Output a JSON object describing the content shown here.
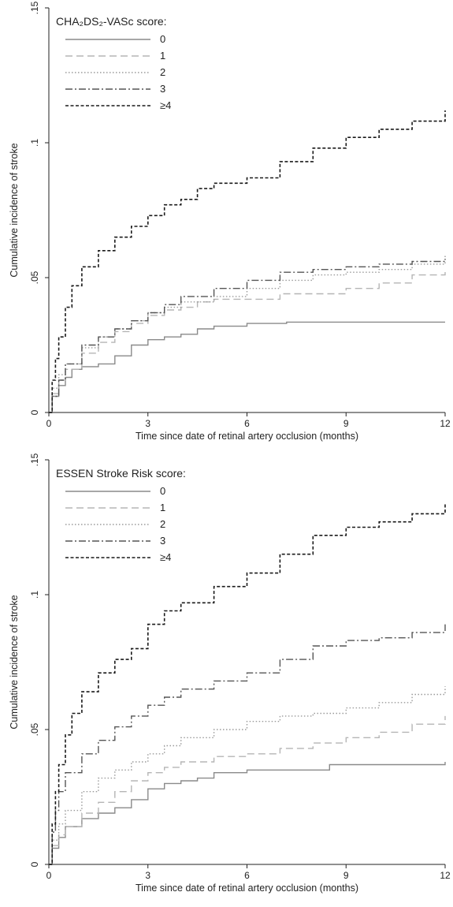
{
  "chart_data": [
    {
      "type": "line",
      "step": true,
      "legend_title": "CHA₂DS₂-VASc score:",
      "legend_position": "top-left",
      "xlabel": "Time since date of retinal artery occlusion (months)",
      "ylabel": "Cumulative incidence of stroke",
      "xlim": [
        0,
        12
      ],
      "ylim": [
        0,
        0.15
      ],
      "xticks": [
        0,
        3,
        6,
        9,
        12
      ],
      "xtick_labels": [
        "0",
        "3",
        "6",
        "9",
        "12"
      ],
      "yticks": [
        0,
        0.05,
        0.1,
        0.15
      ],
      "ytick_labels": [
        "0",
        ".05",
        ".1",
        ".15"
      ],
      "grid": false,
      "series": [
        {
          "name": "0",
          "color": "#8a8a8a",
          "dash": "solid",
          "x": [
            0,
            0.1,
            0.3,
            0.5,
            0.7,
            1,
            1.5,
            2,
            2.5,
            3,
            3.5,
            4,
            4.5,
            5,
            6,
            7,
            7.2,
            9,
            12
          ],
          "y": [
            0,
            0.006,
            0.01,
            0.013,
            0.016,
            0.017,
            0.018,
            0.021,
            0.025,
            0.027,
            0.028,
            0.029,
            0.031,
            0.032,
            0.033,
            0.033,
            0.0335,
            0.0335,
            0.0335
          ]
        },
        {
          "name": "1",
          "color": "#b5b5b5",
          "dash": "longdash",
          "x": [
            0,
            0.1,
            0.3,
            0.5,
            1,
            1.5,
            2,
            2.5,
            3,
            3.5,
            4,
            4.5,
            5,
            6,
            7,
            8,
            9,
            10,
            11,
            12
          ],
          "y": [
            0,
            0.007,
            0.012,
            0.016,
            0.022,
            0.026,
            0.03,
            0.033,
            0.036,
            0.038,
            0.039,
            0.041,
            0.042,
            0.042,
            0.044,
            0.044,
            0.046,
            0.048,
            0.051,
            0.0535
          ]
        },
        {
          "name": "2",
          "color": "#9a9a9a",
          "dash": "dot",
          "x": [
            0,
            0.1,
            0.3,
            0.5,
            1,
            1.5,
            2,
            2.5,
            3,
            3.5,
            4,
            5,
            6,
            7,
            8,
            9,
            10,
            11,
            12
          ],
          "y": [
            0,
            0.009,
            0.014,
            0.018,
            0.024,
            0.028,
            0.031,
            0.034,
            0.037,
            0.039,
            0.041,
            0.043,
            0.046,
            0.049,
            0.051,
            0.052,
            0.053,
            0.055,
            0.0585
          ]
        },
        {
          "name": "3",
          "color": "#555555",
          "dash": "dashdot",
          "x": [
            0,
            0.1,
            0.3,
            0.5,
            1,
            1.5,
            2,
            2.5,
            3,
            3.5,
            4,
            5,
            6,
            7,
            8,
            9,
            10,
            11,
            12
          ],
          "y": [
            0,
            0.006,
            0.012,
            0.018,
            0.025,
            0.028,
            0.031,
            0.034,
            0.037,
            0.04,
            0.043,
            0.046,
            0.049,
            0.052,
            0.053,
            0.054,
            0.055,
            0.056,
            0.057
          ]
        },
        {
          "name": "≥4",
          "color": "#1a1a1a",
          "dash": "dash",
          "x": [
            0,
            0.1,
            0.2,
            0.3,
            0.5,
            0.7,
            1,
            1.5,
            2,
            2.5,
            3,
            3.5,
            4,
            4.5,
            5,
            6,
            7,
            8,
            9,
            10,
            11,
            12
          ],
          "y": [
            0,
            0.012,
            0.02,
            0.028,
            0.039,
            0.047,
            0.054,
            0.06,
            0.065,
            0.069,
            0.073,
            0.077,
            0.079,
            0.083,
            0.085,
            0.087,
            0.093,
            0.098,
            0.102,
            0.105,
            0.108,
            0.112
          ]
        }
      ]
    },
    {
      "type": "line",
      "step": true,
      "legend_title": "ESSEN Stroke Risk score:",
      "legend_position": "top-left",
      "xlabel": "Time since date of retinal artery occlusion (months)",
      "ylabel": "Cumulative incidence of stroke",
      "xlim": [
        0,
        12
      ],
      "ylim": [
        0,
        0.15
      ],
      "xticks": [
        0,
        3,
        6,
        9,
        12
      ],
      "xtick_labels": [
        "0",
        "3",
        "6",
        "9",
        "12"
      ],
      "yticks": [
        0,
        0.05,
        0.1,
        0.15
      ],
      "ytick_labels": [
        "0",
        ".05",
        ".1",
        ".15"
      ],
      "grid": false,
      "series": [
        {
          "name": "0",
          "color": "#8a8a8a",
          "dash": "solid",
          "x": [
            0,
            0.1,
            0.3,
            0.5,
            1,
            1.5,
            2,
            2.5,
            3,
            3.5,
            4,
            4.5,
            5,
            6,
            7,
            8,
            8.5,
            10,
            12
          ],
          "y": [
            0,
            0.006,
            0.01,
            0.014,
            0.017,
            0.019,
            0.021,
            0.024,
            0.028,
            0.03,
            0.031,
            0.032,
            0.034,
            0.035,
            0.035,
            0.035,
            0.037,
            0.037,
            0.038
          ]
        },
        {
          "name": "1",
          "color": "#b5b5b5",
          "dash": "longdash",
          "x": [
            0,
            0.1,
            0.3,
            0.5,
            1,
            1.5,
            2,
            2.5,
            3,
            3.5,
            4,
            5,
            6,
            7,
            8,
            9,
            10,
            11,
            12
          ],
          "y": [
            0,
            0.007,
            0.011,
            0.014,
            0.019,
            0.023,
            0.027,
            0.031,
            0.034,
            0.036,
            0.038,
            0.04,
            0.041,
            0.043,
            0.045,
            0.047,
            0.049,
            0.052,
            0.055
          ]
        },
        {
          "name": "2",
          "color": "#9a9a9a",
          "dash": "dot",
          "x": [
            0,
            0.1,
            0.3,
            0.5,
            1,
            1.5,
            2,
            2.5,
            3,
            3.5,
            4,
            5,
            6,
            7,
            8,
            9,
            10,
            11,
            12
          ],
          "y": [
            0,
            0.009,
            0.015,
            0.02,
            0.027,
            0.032,
            0.035,
            0.038,
            0.041,
            0.044,
            0.047,
            0.05,
            0.053,
            0.055,
            0.056,
            0.058,
            0.06,
            0.063,
            0.066
          ]
        },
        {
          "name": "3",
          "color": "#555555",
          "dash": "dashdot",
          "x": [
            0,
            0.1,
            0.2,
            0.3,
            0.5,
            1,
            1.5,
            2,
            2.5,
            3,
            3.5,
            4,
            5,
            6,
            7,
            8,
            9,
            10,
            11,
            12
          ],
          "y": [
            0,
            0.012,
            0.02,
            0.027,
            0.034,
            0.041,
            0.046,
            0.051,
            0.055,
            0.059,
            0.062,
            0.065,
            0.068,
            0.071,
            0.076,
            0.081,
            0.083,
            0.084,
            0.086,
            0.089
          ]
        },
        {
          "name": "≥4",
          "color": "#1a1a1a",
          "dash": "dash",
          "x": [
            0,
            0.1,
            0.2,
            0.3,
            0.5,
            0.7,
            1,
            1.5,
            2,
            2.5,
            3,
            3.5,
            4,
            5,
            6,
            7,
            8,
            9,
            10,
            11,
            12
          ],
          "y": [
            0,
            0.015,
            0.027,
            0.037,
            0.048,
            0.056,
            0.064,
            0.071,
            0.076,
            0.08,
            0.089,
            0.094,
            0.097,
            0.103,
            0.108,
            0.115,
            0.122,
            0.125,
            0.127,
            0.13,
            0.134
          ]
        }
      ]
    }
  ]
}
